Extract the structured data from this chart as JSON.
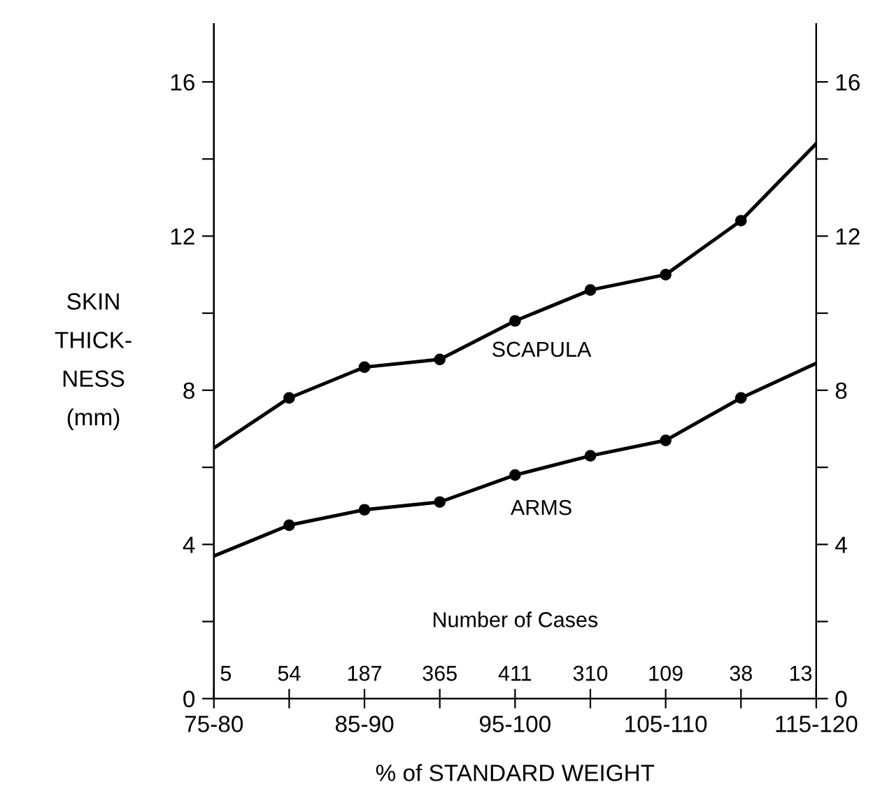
{
  "chart_data": {
    "type": "line",
    "categories": [
      "75-80",
      null,
      "85-90",
      null,
      "95-100",
      null,
      "105-110",
      null,
      "115-120"
    ],
    "series": [
      {
        "name": "SCAPULA",
        "color": "#000000",
        "values": [
          6.5,
          7.8,
          8.6,
          8.8,
          9.8,
          10.6,
          11.0,
          12.4,
          14.4
        ]
      },
      {
        "name": "ARMS",
        "color": "#000000",
        "values": [
          3.7,
          4.5,
          4.9,
          5.1,
          5.8,
          6.3,
          6.7,
          7.8,
          8.7
        ]
      }
    ],
    "xlabel": "% of STANDARD WEIGHT",
    "ylabel": "SKIN\nTHICK-\nNESS\n(mm)",
    "ylim": [
      0,
      17.5
    ],
    "yticks": [
      0,
      {
        "value": 2,
        "label": null
      },
      4,
      {
        "value": 6,
        "label": null
      },
      8,
      {
        "value": 10,
        "label": null
      },
      12,
      {
        "value": 14,
        "label": null
      },
      16
    ],
    "y2lim": [
      0,
      17.5
    ],
    "y2ticks": [
      0,
      {
        "value": 2,
        "label": null
      },
      4,
      {
        "value": 6,
        "label": null
      },
      8,
      {
        "value": 10,
        "label": null
      },
      12,
      {
        "value": 14,
        "label": null
      },
      16
    ],
    "annotations": [
      "Number of Cases",
      "5",
      "54",
      "187",
      "365",
      "411",
      "310",
      "109",
      "38",
      "13"
    ],
    "marker": "circle",
    "line_style": "solid",
    "grid": false,
    "legend": false
  }
}
